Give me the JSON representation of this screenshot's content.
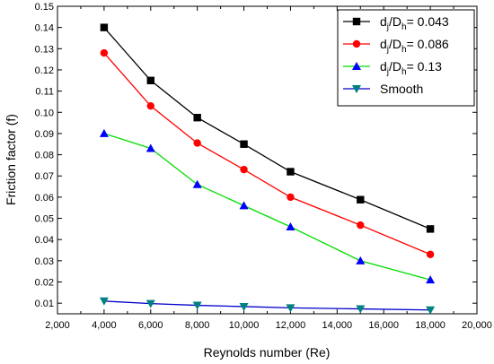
{
  "chart_data": {
    "type": "line",
    "title": "",
    "xlabel": "Reynolds number (Re)",
    "ylabel": "Friction factor (f)",
    "xlim": [
      2000,
      20000
    ],
    "ylim": [
      0.005,
      0.15
    ],
    "x_ticks": [
      2000,
      4000,
      6000,
      8000,
      10000,
      12000,
      14000,
      16000,
      18000,
      20000
    ],
    "x_tick_labels": [
      "2,000",
      "4,000",
      "6,000",
      "8,000",
      "10,000",
      "12,000",
      "14,000",
      "16,000",
      "18,000",
      "20,000"
    ],
    "y_ticks": [
      0.01,
      0.02,
      0.03,
      0.04,
      0.05,
      0.06,
      0.07,
      0.08,
      0.09,
      0.1,
      0.11,
      0.12,
      0.13,
      0.14,
      0.15
    ],
    "y_tick_labels": [
      "0.01",
      "0.02",
      "0.03",
      "0.04",
      "0.05",
      "0.06",
      "0.07",
      "0.08",
      "0.09",
      "0.10",
      "0.11",
      "0.12",
      "0.13",
      "0.14",
      "0.15"
    ],
    "grid": false,
    "legend_position": "top-right",
    "x": [
      4000,
      6000,
      8000,
      10000,
      12000,
      15000,
      18000
    ],
    "series": [
      {
        "legend_main": "d",
        "legend_sub1": "j",
        "legend_mid": "/D",
        "legend_sub2": "h",
        "legend_tail": "= 0.043",
        "color": "#000000",
        "marker": "square",
        "values": [
          0.14,
          0.115,
          0.0975,
          0.085,
          0.072,
          0.0588,
          0.045
        ]
      },
      {
        "legend_main": "d",
        "legend_sub1": "j",
        "legend_mid": "/D",
        "legend_sub2": "h",
        "legend_tail": "= 0.086",
        "color": "#ff0000",
        "marker": "circle",
        "values": [
          0.128,
          0.103,
          0.0855,
          0.073,
          0.06,
          0.0468,
          0.033
        ]
      },
      {
        "legend_main": "d",
        "legend_sub1": "j",
        "legend_mid": "/D",
        "legend_sub2": "h",
        "legend_tail": "= 0.13",
        "color": "#00cc00",
        "line_color": "#00dd00",
        "marker_color": "#0000ff",
        "marker": "triangle-up",
        "values": [
          0.09,
          0.083,
          0.066,
          0.056,
          0.046,
          0.03,
          0.021
        ]
      },
      {
        "legend_main": "Smooth",
        "color": "#0000cc",
        "marker_color": "#008080",
        "marker": "triangle-down",
        "values": [
          0.011,
          0.0098,
          0.009,
          0.0084,
          0.0078,
          0.0073,
          0.0068
        ]
      }
    ]
  }
}
